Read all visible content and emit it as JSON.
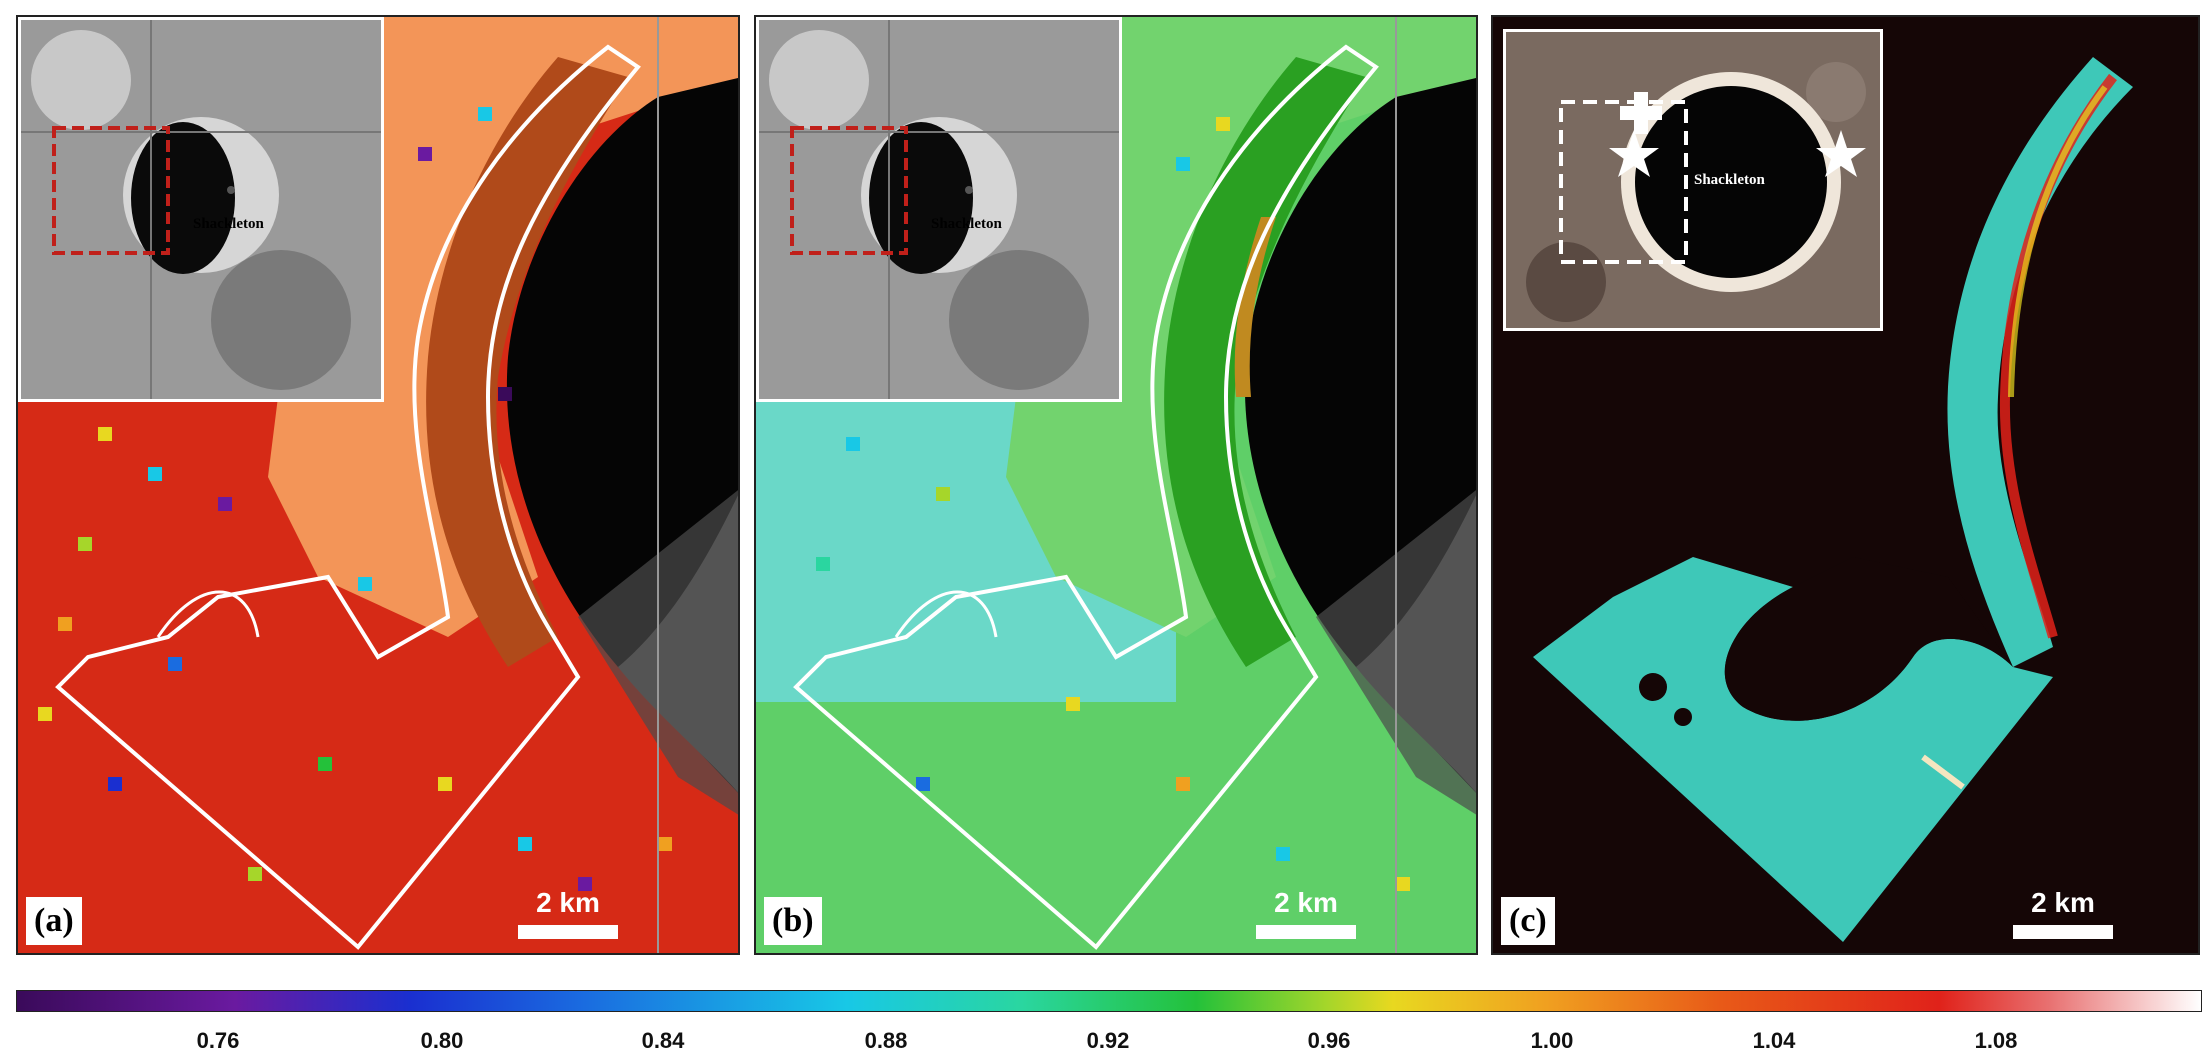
{
  "panels": {
    "a": {
      "letter": "(a)",
      "scale_label": "2 km",
      "inset_label": "Shackleton"
    },
    "b": {
      "letter": "(b)",
      "scale_label": "2 km",
      "inset_label": "Shackleton"
    },
    "c": {
      "letter": "(c)",
      "scale_label": "2 km",
      "inset_label": "Shackleton"
    }
  },
  "colorbar": {
    "ticks": [
      "0.76",
      "0.80",
      "0.84",
      "0.88",
      "0.92",
      "0.96",
      "1.00",
      "1.04",
      "1.08"
    ],
    "colors": {
      "low": "#3a0a5a",
      "mid": "#24c13a",
      "high": "#ffffff"
    }
  },
  "colors": {
    "panel_a": "#d62a16",
    "panel_b": "#5fcf68",
    "panel_c": "#150606",
    "outline": "#ffffff",
    "inset_box_ab": "#c0201a"
  }
}
